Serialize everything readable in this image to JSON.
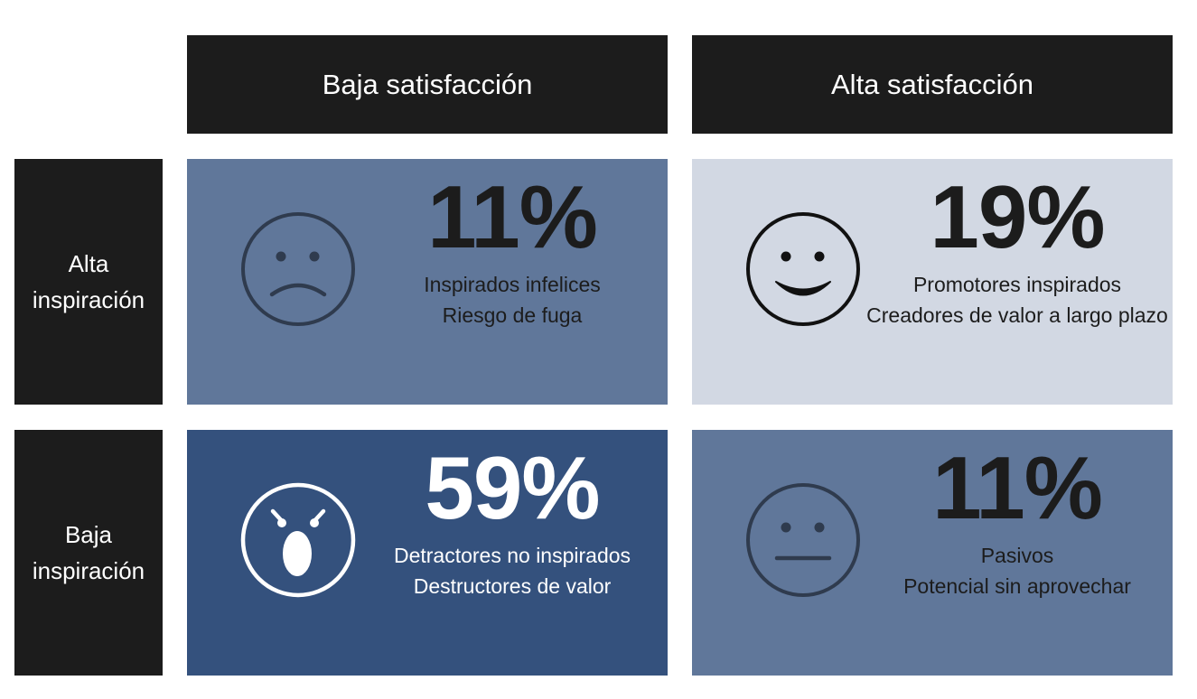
{
  "columns": {
    "low_satisfaction": "Baja satisfacción",
    "high_satisfaction": "Alta satisfacción"
  },
  "rows": {
    "high_inspiration": {
      "line1": "Alta",
      "line2": "inspiración"
    },
    "low_inspiration": {
      "line1": "Baja",
      "line2": "inspiración"
    }
  },
  "quadrants": {
    "high_insp_low_sat": {
      "percent": "11%",
      "label1": "Inspirados infelices",
      "label2": "Riesgo de fuga",
      "face_icon": "sad-face-icon",
      "bg_color": "#60779a",
      "text_color": "#1c1c1c",
      "face_color": "#2f3b4e"
    },
    "high_insp_high_sat": {
      "percent": "19%",
      "label1": "Promotores inspirados",
      "label2": "Creadores de valor a largo plazo",
      "face_icon": "happy-face-icon",
      "bg_color": "#d2d8e3",
      "text_color": "#1c1c1c",
      "face_color": "#111111"
    },
    "low_insp_low_sat": {
      "percent": "59%",
      "label1": "Detractores no inspirados",
      "label2": "Destructores de valor",
      "face_icon": "angry-face-icon",
      "bg_color": "#34517d",
      "text_color": "#ffffff",
      "face_color": "#ffffff"
    },
    "low_insp_high_sat": {
      "percent": "11%",
      "label1": "Pasivos",
      "label2": "Potencial sin aprovechar",
      "face_icon": "neutral-face-icon",
      "bg_color": "#60779a",
      "text_color": "#1c1c1c",
      "face_color": "#2f3b4e"
    }
  }
}
